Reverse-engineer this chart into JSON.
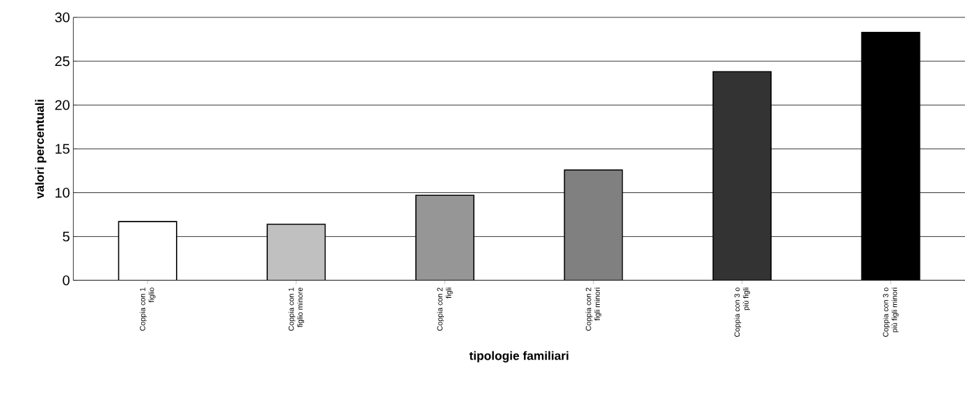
{
  "chart_data": {
    "type": "bar",
    "xlabel": "tipologie familiari",
    "ylabel": "valori percentuali",
    "categories": [
      "Coppia con 1 figlio",
      "Coppia con 1 figlio minore",
      "Coppia con 2 figli",
      "Coppia con 2 figli minori",
      "Coppia con 3 o più figli",
      "Coppia con 3 o più figli minori"
    ],
    "values": [
      6.7,
      6.4,
      9.7,
      12.6,
      23.8,
      28.3
    ],
    "colors": [
      "#ffffff",
      "#c0c0c0",
      "#969696",
      "#808080",
      "#333333",
      "#000000"
    ],
    "ylim": [
      0,
      30
    ],
    "yticks": [
      0,
      5,
      10,
      15,
      20,
      25,
      30
    ],
    "grid": "y"
  }
}
